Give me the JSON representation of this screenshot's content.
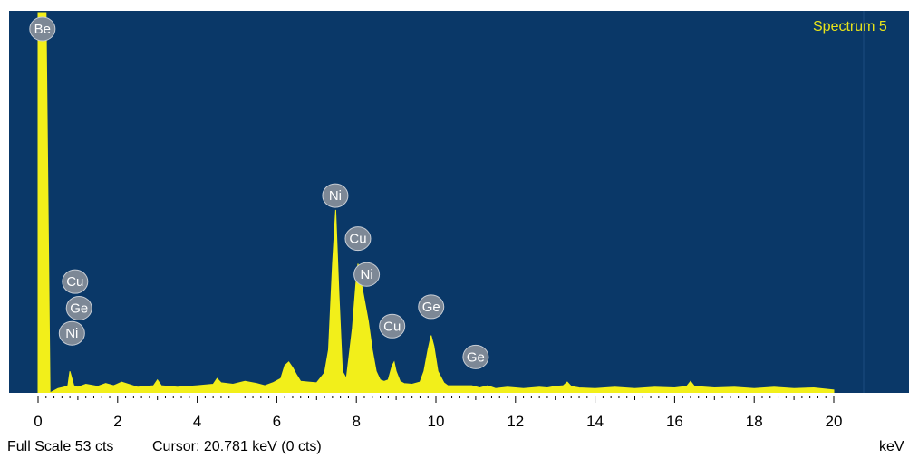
{
  "spectrum_title": "Spectrum 5",
  "status": {
    "full_scale": "Full Scale 53 cts",
    "cursor": "Cursor: 20.781 keV (0 cts)",
    "unit": "keV"
  },
  "colors": {
    "plot_background": "#0a3868",
    "spectrum_fill": "#f2ef1a",
    "title_color": "#e8e41a",
    "axis_bar": "#ffffff"
  },
  "chart_data": {
    "type": "area",
    "title": "Spectrum 5",
    "xlabel": "keV",
    "ylabel": "",
    "xlim": [
      -0.7,
      21.8
    ],
    "ylim": [
      0,
      53
    ],
    "x_ticks": [
      0,
      2,
      4,
      6,
      8,
      10,
      12,
      14,
      16,
      18,
      20
    ],
    "series": [
      {
        "name": "",
        "x": [
          0.0,
          0.1,
          0.2,
          0.3,
          0.5,
          0.65,
          0.75,
          0.8,
          0.9,
          1.0,
          1.2,
          1.5,
          1.7,
          1.9,
          2.1,
          2.5,
          2.9,
          3.0,
          3.1,
          3.5,
          4.0,
          4.4,
          4.5,
          4.6,
          4.9,
          5.2,
          5.5,
          5.7,
          5.9,
          6.1,
          6.2,
          6.3,
          6.4,
          6.5,
          6.6,
          6.8,
          7.0,
          7.2,
          7.3,
          7.4,
          7.48,
          7.56,
          7.65,
          7.75,
          7.9,
          8.0,
          8.04,
          8.1,
          8.2,
          8.3,
          8.4,
          8.5,
          8.6,
          8.7,
          8.8,
          8.9,
          8.95,
          9.0,
          9.1,
          9.2,
          9.4,
          9.6,
          9.7,
          9.8,
          9.88,
          9.95,
          10.05,
          10.2,
          10.3,
          10.5,
          10.9,
          11.1,
          11.3,
          11.5,
          11.8,
          12.2,
          12.6,
          12.8,
          13.0,
          13.2,
          13.3,
          13.4,
          13.6,
          14.0,
          14.5,
          15.0,
          15.5,
          16.0,
          16.3,
          16.4,
          16.5,
          17.0,
          17.5,
          18.0,
          18.5,
          19.0,
          19.5,
          20.0
        ],
        "values": [
          53,
          53,
          53,
          0,
          0.6,
          0.8,
          1.0,
          3.0,
          1.0,
          0.8,
          1.2,
          0.9,
          1.3,
          1.0,
          1.5,
          0.8,
          1.0,
          1.8,
          1.0,
          0.8,
          1.0,
          1.2,
          2.0,
          1.4,
          1.2,
          1.6,
          1.3,
          1.0,
          1.4,
          2.0,
          3.8,
          4.3,
          3.5,
          2.5,
          1.6,
          1.5,
          1.4,
          2.8,
          6.0,
          18.0,
          25.5,
          14.0,
          3.0,
          2.0,
          9.0,
          16.0,
          18.0,
          16.0,
          13.0,
          10.0,
          6.0,
          3.0,
          1.8,
          1.6,
          1.8,
          3.8,
          4.3,
          3.0,
          1.6,
          1.3,
          1.2,
          1.5,
          3.0,
          6.0,
          8.0,
          6.5,
          3.0,
          1.4,
          1.0,
          1.0,
          1.0,
          0.7,
          1.0,
          0.6,
          0.8,
          0.6,
          0.8,
          0.7,
          0.9,
          1.0,
          1.5,
          0.9,
          0.7,
          0.6,
          0.8,
          0.6,
          0.8,
          0.7,
          0.9,
          1.6,
          0.9,
          0.7,
          0.8,
          0.6,
          0.8,
          0.6,
          0.7,
          0.4
        ]
      }
    ],
    "annotations": [
      {
        "text": "Be",
        "x": 0.11,
        "y": 53
      },
      {
        "text": "Ni",
        "x": 7.47,
        "y": 27.5
      },
      {
        "text": "Cu",
        "x": 8.04,
        "y": 21.5
      },
      {
        "text": "Ni",
        "x": 8.26,
        "y": 16.5
      },
      {
        "text": "Cu",
        "x": 0.93,
        "y": 15.5
      },
      {
        "text": "Ge",
        "x": 1.03,
        "y": 11.8
      },
      {
        "text": "Ni",
        "x": 0.85,
        "y": 8.3
      },
      {
        "text": "Cu",
        "x": 8.9,
        "y": 9.3
      },
      {
        "text": "Ge",
        "x": 9.88,
        "y": 12.0
      },
      {
        "text": "Ge",
        "x": 11.0,
        "y": 5.0
      }
    ]
  }
}
